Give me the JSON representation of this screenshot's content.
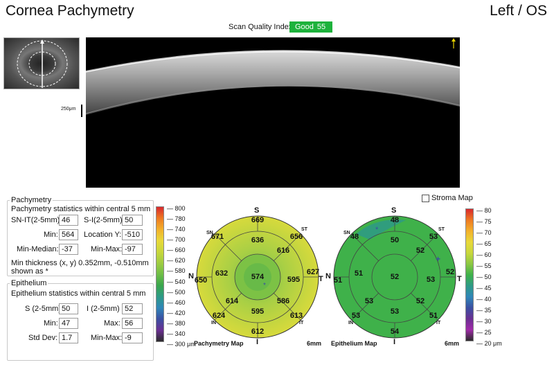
{
  "header": {
    "title": "Cornea Pachymetry",
    "eye": "Left / OS",
    "scan_quality_label": "Scan Quality Index",
    "scan_quality_value": "Good",
    "scan_quality_score": "55"
  },
  "scan": {
    "scale_label": "250μm",
    "accent_color": "#e8d200"
  },
  "pachymetry": {
    "group_title": "Pachymetry",
    "subtitle": "Pachymetry statistics within central 5 mm",
    "sn_it_label": "SN-IT(2-5mm):",
    "sn_it_value": "46",
    "s_i_label": "S-I(2-5mm):",
    "s_i_value": "50",
    "min_label": "Min:",
    "min_value": "564",
    "location_y_label": "Location Y:",
    "location_y_value": "-510",
    "min_median_label": "Min-Median:",
    "min_median_value": "-37",
    "min_max_label": "Min-Max:",
    "min_max_value": "-97",
    "min_thickness_line1": "Min thickness (x, y) 0.352mm, -0.510mm",
    "min_thickness_line2": "shown as *"
  },
  "epithelium": {
    "group_title": "Epithelium",
    "subtitle": "Epithelium statistics within central 5 mm",
    "s_label": "S (2-5mm)",
    "s_value": "50",
    "i_label": "I (2-5mm)",
    "i_value": "52",
    "min_label": "Min:",
    "min_value": "47",
    "max_label": "Max:",
    "max_value": "56",
    "std_label": "Std Dev:",
    "std_value": "1.7",
    "min_max_label": "Min-Max:",
    "min_max_value": "-9"
  },
  "stroma_map": {
    "label": "Stroma Map",
    "checked": false
  },
  "pachy_colorbar": {
    "ticks": [
      "800",
      "780",
      "740",
      "700",
      "660",
      "620",
      "580",
      "540",
      "500",
      "460",
      "420",
      "380",
      "340"
    ],
    "bottom": "300 μm",
    "colors": [
      "#d8282d",
      "#ee7a22",
      "#f2b12b",
      "#e8d83a",
      "#c8d73c",
      "#9fcc42",
      "#6fbe47",
      "#3aa64c",
      "#2e9a86",
      "#2f86b8",
      "#3b4fa2",
      "#6a2f92",
      "#2b2b2b"
    ]
  },
  "epi_colorbar": {
    "ticks": [
      "80",
      "75",
      "70",
      "65",
      "60",
      "55",
      "50",
      "45",
      "40",
      "35",
      "30",
      "25"
    ],
    "bottom": "20 μm",
    "colors": [
      "#d8282d",
      "#ee7a22",
      "#f2b12b",
      "#e8d83a",
      "#c8d73c",
      "#8cc843",
      "#3fb14a",
      "#2e9a86",
      "#2f86b8",
      "#3b4fa2",
      "#6a2f92",
      "#a02aa8",
      "#2b2b2b"
    ]
  },
  "pachy_map": {
    "caption": "Pachymetry Map",
    "size": "6mm",
    "dir_top": "S",
    "dir_bottom": "I",
    "dir_left": "N",
    "dir_right": "T",
    "sub_sn": "SN",
    "sub_st": "ST",
    "sub_in": "IN",
    "sub_it": "IT",
    "center": "574",
    "inner": [
      "636",
      "616",
      "595",
      "586",
      "595",
      "614",
      "632"
    ],
    "inner_extra": "",
    "outer": [
      "669",
      "656",
      "627",
      "613",
      "612",
      "624",
      "650",
      "671"
    ]
  },
  "epi_map": {
    "caption": "Epithelium Map",
    "size": "6mm",
    "dir_top": "S",
    "dir_bottom": "I",
    "dir_left": "N",
    "dir_right": "T",
    "sub_sn": "SN",
    "sub_st": "ST",
    "sub_in": "IN",
    "sub_it": "IT",
    "center": "52",
    "inner": [
      "50",
      "52",
      "53",
      "52",
      "53",
      "53",
      "51"
    ],
    "outer": [
      "48",
      "53",
      "52",
      "51",
      "54",
      "53",
      "51",
      "48"
    ]
  }
}
